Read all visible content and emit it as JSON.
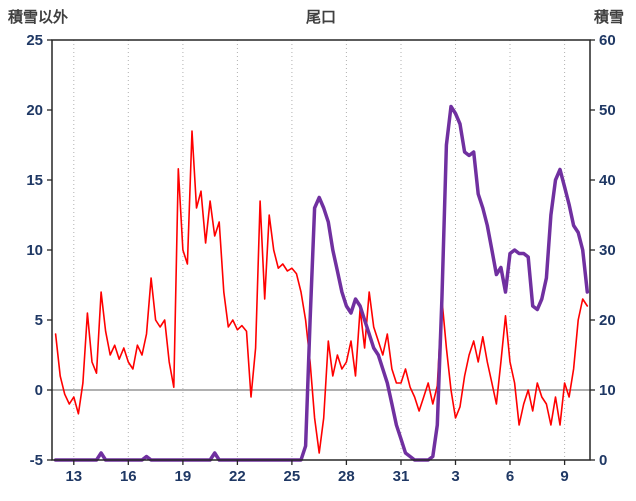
{
  "chart_data": {
    "type": "line",
    "title": "尾口",
    "left_axis": {
      "label": "積雪以外",
      "min": -5,
      "max": 25,
      "ticks": [
        -5,
        0,
        5,
        10,
        15,
        20,
        25
      ]
    },
    "right_axis": {
      "label": "積雪",
      "min": 0,
      "max": 60,
      "ticks": [
        0,
        10,
        20,
        30,
        40,
        50,
        60
      ]
    },
    "x_axis": {
      "min": 11.8,
      "max": 41.4,
      "tick_positions": [
        13,
        16,
        19,
        22,
        25,
        28,
        31,
        34,
        37,
        40
      ],
      "tick_labels": [
        "13",
        "16",
        "19",
        "22",
        "25",
        "28",
        "31",
        "3",
        "6",
        "9"
      ]
    },
    "grid": "vertical-dotted",
    "zero_line_left_value": 0,
    "colors": {
      "red_series": "#ff0000",
      "purple_series": "#7030a0",
      "grid": "#b0b0b0",
      "border": "#262626",
      "zero_line": "#808080",
      "tick_text": "#1f3864",
      "title_text": "#404040"
    },
    "series": [
      {
        "name": "積雪以外",
        "axis": "left",
        "color": "#ff0000",
        "width": 1.6,
        "x_start": 12,
        "x_step": 0.25,
        "values": [
          4,
          1,
          -0.3,
          -1,
          -0.5,
          -1.7,
          0.5,
          5.5,
          2,
          1.2,
          7,
          4.2,
          2.5,
          3.2,
          2.2,
          3,
          2,
          1.5,
          3.2,
          2.5,
          4,
          8,
          5,
          4.5,
          5,
          2,
          0.2,
          15.8,
          10,
          9,
          18.5,
          13,
          14.2,
          10.5,
          13.5,
          11,
          12,
          7,
          4.5,
          5,
          4.3,
          4.6,
          4.2,
          -0.5,
          3,
          13.5,
          6.5,
          12.5,
          10,
          8.7,
          9,
          8.5,
          8.7,
          8.3,
          7,
          5,
          2,
          -2,
          -4.5,
          -2,
          3.5,
          1,
          2.5,
          1.5,
          2,
          3.5,
          1,
          5.8,
          3,
          7,
          4.5,
          3.5,
          2.5,
          4,
          1.5,
          0.5,
          0.5,
          1.5,
          0.2,
          -0.5,
          -1.5,
          -0.5,
          0.5,
          -1,
          0.3,
          6.5,
          3,
          0,
          -2,
          -1.2,
          1,
          2.5,
          3.5,
          2,
          3.8,
          2,
          0.5,
          -1,
          2,
          5.3,
          2,
          0.5,
          -2.5,
          -1,
          0,
          -1.5,
          0.5,
          -0.5,
          -1,
          -2.5,
          -0.5,
          -2.5,
          0.5,
          -0.5,
          1.5,
          5,
          6.5,
          6
        ]
      },
      {
        "name": "積雪",
        "axis": "right",
        "color": "#7030a0",
        "width": 3.5,
        "x_start": 12,
        "x_step": 0.25,
        "values": [
          0,
          0,
          0,
          0,
          0,
          0,
          0,
          0,
          0,
          0,
          1,
          0,
          0,
          0,
          0,
          0,
          0,
          0,
          0,
          0,
          0.5,
          0,
          0,
          0,
          0,
          0,
          0,
          0,
          0,
          0,
          0,
          0,
          0,
          0,
          0,
          1,
          0,
          0,
          0,
          0,
          0,
          0,
          0,
          0,
          0,
          0,
          0,
          0,
          0,
          0,
          0,
          0,
          0,
          0,
          0,
          2,
          20,
          36,
          37.5,
          36,
          34,
          30,
          27,
          24,
          22,
          21,
          23,
          22,
          20,
          18,
          16,
          15,
          13,
          11,
          8,
          5,
          3,
          1,
          0.5,
          0,
          0,
          0,
          0,
          0.5,
          5,
          23,
          45,
          50.5,
          49.5,
          48,
          44,
          43.5,
          44,
          38,
          36,
          33.5,
          30,
          26.5,
          27.5,
          24,
          29.5,
          30,
          29.5,
          29.5,
          29,
          22,
          21.5,
          23,
          26,
          35,
          40,
          41.5,
          39,
          36.5,
          33.5,
          32.5,
          30,
          24
        ]
      }
    ]
  }
}
